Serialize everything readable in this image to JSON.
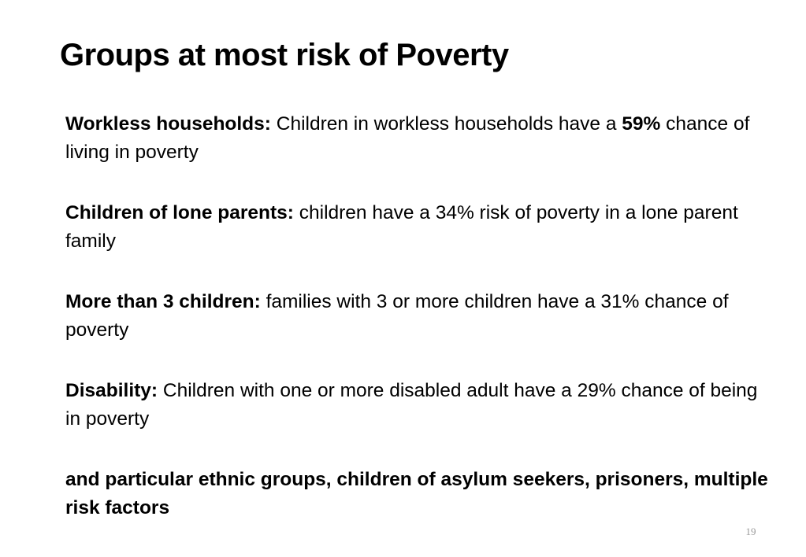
{
  "slide": {
    "title": "Groups at most risk of Poverty",
    "items": [
      {
        "heading": "Workless households:",
        "text_before": " Children in workless households have a ",
        "emphasis": "59%",
        "text_after": " chance of living in poverty"
      },
      {
        "heading": "Children of lone parents:",
        "text": " children have a 34% risk of poverty in a lone parent family"
      },
      {
        "heading": "More than 3 children:",
        "text": " families with 3 or more children have a 31% chance of poverty"
      },
      {
        "heading": "Disability:",
        "text": " Children with one or more disabled adult have a 29% chance of being in poverty"
      }
    ],
    "closing": "and particular ethnic groups, children of asylum seekers, prisoners, multiple risk factors",
    "slide_number": "19"
  }
}
